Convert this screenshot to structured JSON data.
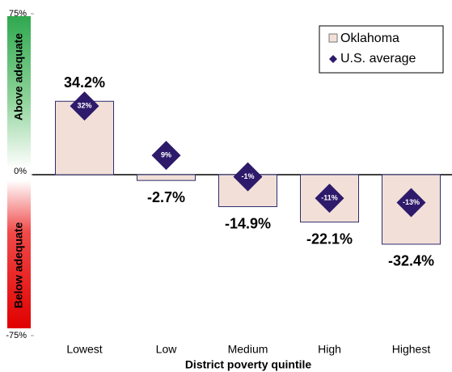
{
  "chart_data": {
    "type": "bar",
    "x_label": "District poverty quintile",
    "annotations": [
      "Above adequate",
      "Below adequate"
    ],
    "categories": [
      "Lowest",
      "Low",
      "Medium",
      "High",
      "Highest"
    ],
    "series": [
      {
        "name": "Oklahoma",
        "color": "#f2e0d8",
        "values": [
          34.2,
          -2.7,
          -14.9,
          -22.1,
          -32.4
        ],
        "value_labels": [
          "34.2%",
          "-2.7%",
          "-14.9%",
          "-22.1%",
          "-32.4%"
        ]
      },
      {
        "name": "U.S. average",
        "color": "#2e1a6b",
        "values": [
          32,
          9,
          -1,
          -11,
          -13
        ],
        "value_labels": [
          "32%",
          "9%",
          "-1%",
          "-11%",
          "-13%"
        ]
      }
    ],
    "ylim": [
      -75,
      75
    ],
    "yticks": [
      {
        "value": 75,
        "label": "75%"
      },
      {
        "value": 0,
        "label": "0%"
      },
      {
        "value": -75,
        "label": "-75%"
      }
    ],
    "grid": false,
    "legend": "upper right"
  }
}
